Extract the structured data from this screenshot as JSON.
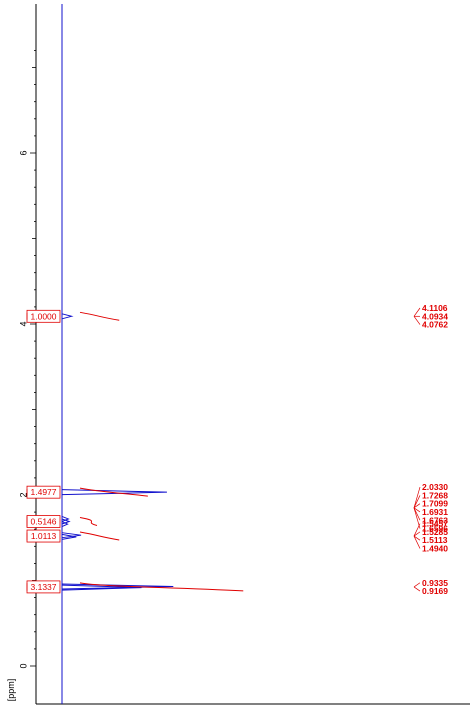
{
  "chart_data": {
    "type": "line",
    "title": "",
    "ylabel": "[ppm]",
    "ylim": [
      -0.3,
      7.6
    ],
    "y_ticks": [
      "0",
      "2",
      "4",
      "6"
    ],
    "grid": false,
    "spectrum_peaks": [
      {
        "ppm": 4.09,
        "intensity": 0.06
      },
      {
        "ppm": 2.033,
        "intensity": 0.66
      },
      {
        "ppm": 1.72,
        "intensity": 0.04
      },
      {
        "ppm": 1.69,
        "intensity": 0.045
      },
      {
        "ppm": 1.66,
        "intensity": 0.035
      },
      {
        "ppm": 1.53,
        "intensity": 0.12
      },
      {
        "ppm": 1.51,
        "intensity": 0.09
      },
      {
        "ppm": 0.93,
        "intensity": 0.7
      },
      {
        "ppm": 0.917,
        "intensity": 0.5
      }
    ],
    "integrals": [
      {
        "value": "1.0000",
        "ppm": 4.09,
        "range": [
          4.05,
          4.13
        ],
        "height": 0.18
      },
      {
        "value": "1.4977",
        "ppm": 2.033,
        "range": [
          1.99,
          2.07
        ],
        "height": 0.27
      },
      {
        "value": "0.5146",
        "ppm": 1.69,
        "range": [
          1.63,
          1.75
        ],
        "height": 0.11
      },
      {
        "value": "1.0113",
        "ppm": 1.52,
        "range": [
          1.47,
          1.56
        ],
        "height": 0.18
      },
      {
        "value": "3.1337",
        "ppm": 0.925,
        "range": [
          0.88,
          0.97
        ],
        "height": 0.57
      }
    ],
    "peak_groups": [
      {
        "labels": [
          "4.1106",
          "4.0934",
          "4.0762"
        ],
        "target_ppm": 4.09
      },
      {
        "labels": [
          "2.0330",
          "1.7268",
          "1.7099",
          "1.6931",
          "1.6763",
          "1.6596"
        ],
        "target_ppm": 1.85
      },
      {
        "labels": [
          "1.5457",
          "1.5285",
          "1.5113",
          "1.4940"
        ],
        "target_ppm": 1.52
      },
      {
        "labels": [
          "0.9335",
          "0.9169"
        ],
        "target_ppm": 0.925
      }
    ]
  },
  "colors": {
    "spectrum": "#1010cc",
    "integral": "#e00000",
    "axis": "#000000"
  }
}
